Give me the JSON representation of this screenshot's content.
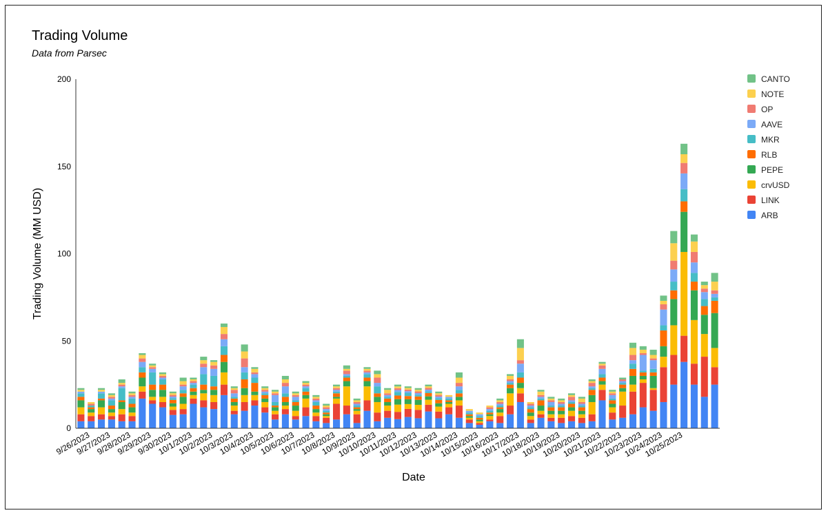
{
  "chart_data": {
    "type": "bar",
    "stacked": true,
    "title": "Trading Volume",
    "subtitle": "Data from Parsec",
    "xlabel": "Date",
    "ylabel": "Trading Volume (MM USD)",
    "ylim": [
      0,
      200
    ],
    "yticks": [
      0,
      50,
      100,
      150,
      200
    ],
    "grid": false,
    "legend_position": "right",
    "x_tick_labels": [
      "9/26/2023",
      "9/27/2023",
      "9/28/2023",
      "9/29/2023",
      "9/30/2023",
      "10/1/2023",
      "10/2/2023",
      "10/3/2023",
      "10/4/2023",
      "10/5/2023",
      "10/6/2023",
      "10/7/2023",
      "10/8/2023",
      "10/9/2023",
      "10/10/2023",
      "10/11/2023",
      "10/12/2023",
      "10/13/2023",
      "10/14/2023",
      "10/15/2023",
      "10/16/2023",
      "10/17/2023",
      "10/18/2023",
      "10/19/2023",
      "10/20/2023",
      "10/21/2023",
      "10/22/2023",
      "10/23/2023",
      "10/24/2023",
      "10/25/2023"
    ],
    "series": [
      {
        "name": "ARB",
        "color": "#4285F4"
      },
      {
        "name": "LINK",
        "color": "#EA4335"
      },
      {
        "name": "crvUSD",
        "color": "#FBBC04"
      },
      {
        "name": "PEPE",
        "color": "#34A853"
      },
      {
        "name": "RLB",
        "color": "#FF6D01"
      },
      {
        "name": "MKR",
        "color": "#46BDC6"
      },
      {
        "name": "AAVE",
        "color": "#7BAAF7"
      },
      {
        "name": "OP",
        "color": "#F07B72"
      },
      {
        "name": "NOTE",
        "color": "#FCD04F"
      },
      {
        "name": "CANTO",
        "color": "#71C287"
      }
    ],
    "bar_totals": [
      23,
      15,
      23,
      20,
      28,
      21,
      43,
      37,
      32,
      21,
      29,
      29,
      41,
      39,
      60,
      24,
      48,
      35,
      24,
      22,
      30,
      21,
      27,
      19,
      14,
      25,
      36,
      17,
      35,
      33,
      23,
      25,
      24,
      23,
      25,
      21,
      19,
      32,
      11,
      9,
      13,
      17,
      31,
      51,
      15,
      22,
      18,
      17,
      20,
      18,
      28,
      38,
      22,
      29,
      49,
      47,
      45,
      76,
      113,
      163,
      111,
      84,
      89
    ],
    "bar_segments": [
      [
        4,
        4,
        4,
        4,
        2,
        2,
        1,
        0,
        1,
        1
      ],
      [
        4,
        3,
        2,
        2,
        1,
        1,
        0,
        1,
        1,
        0
      ],
      [
        5,
        3,
        4,
        4,
        1,
        3,
        1,
        0,
        1,
        1
      ],
      [
        5,
        2,
        2,
        2,
        2,
        3,
        1,
        1,
        1,
        1
      ],
      [
        4,
        4,
        3,
        4,
        1,
        7,
        1,
        1,
        1,
        2
      ],
      [
        4,
        3,
        2,
        3,
        2,
        3,
        1,
        1,
        1,
        1
      ],
      [
        17,
        4,
        3,
        5,
        3,
        3,
        3,
        2,
        2,
        1
      ],
      [
        14,
        2,
        2,
        4,
        3,
        7,
        2,
        1,
        1,
        1
      ],
      [
        12,
        3,
        3,
        4,
        3,
        3,
        1,
        1,
        1,
        1
      ],
      [
        8,
        3,
        2,
        2,
        2,
        1,
        1,
        1,
        1,
        1
      ],
      [
        8,
        3,
        3,
        4,
        2,
        2,
        2,
        1,
        2,
        2
      ],
      [
        14,
        3,
        2,
        2,
        2,
        2,
        1,
        1,
        1,
        1
      ],
      [
        12,
        4,
        4,
        2,
        3,
        6,
        4,
        2,
        2,
        2
      ],
      [
        11,
        4,
        4,
        3,
        2,
        6,
        4,
        2,
        2,
        1
      ],
      [
        19,
        6,
        7,
        6,
        4,
        5,
        4,
        3,
        4,
        2
      ],
      [
        8,
        2,
        3,
        2,
        2,
        1,
        2,
        2,
        1,
        1
      ],
      [
        10,
        5,
        4,
        4,
        5,
        4,
        3,
        5,
        4,
        4
      ],
      [
        13,
        3,
        3,
        2,
        5,
        3,
        2,
        1,
        2,
        1
      ],
      [
        9,
        3,
        3,
        2,
        2,
        1,
        1,
        1,
        1,
        1
      ],
      [
        5,
        3,
        2,
        2,
        1,
        2,
        4,
        1,
        1,
        1
      ],
      [
        8,
        3,
        2,
        2,
        3,
        2,
        4,
        2,
        2,
        2
      ],
      [
        5,
        2,
        3,
        3,
        2,
        1,
        2,
        1,
        1,
        1
      ],
      [
        7,
        5,
        5,
        2,
        2,
        2,
        1,
        1,
        1,
        1
      ],
      [
        4,
        3,
        2,
        2,
        2,
        2,
        1,
        1,
        1,
        1
      ],
      [
        3,
        3,
        1,
        1,
        1,
        1,
        1,
        1,
        1,
        1
      ],
      [
        5,
        9,
        3,
        1,
        2,
        1,
        1,
        1,
        1,
        1
      ],
      [
        8,
        5,
        11,
        3,
        2,
        1,
        1,
        2,
        1,
        2
      ],
      [
        3,
        5,
        2,
        1,
        1,
        1,
        1,
        1,
        1,
        1
      ],
      [
        10,
        6,
        8,
        3,
        2,
        2,
        1,
        1,
        1,
        1
      ],
      [
        4,
        5,
        6,
        3,
        2,
        4,
        2,
        3,
        2,
        2
      ],
      [
        6,
        4,
        3,
        2,
        2,
        1,
        1,
        1,
        2,
        1
      ],
      [
        5,
        4,
        4,
        3,
        2,
        2,
        1,
        1,
        1,
        1
      ],
      [
        7,
        5,
        3,
        3,
        2,
        2,
        1,
        1,
        1,
        1
      ],
      [
        6,
        5,
        3,
        3,
        2,
        1,
        1,
        1,
        1,
        1
      ],
      [
        10,
        4,
        3,
        2,
        2,
        1,
        1,
        1,
        1,
        1
      ],
      [
        6,
        4,
        3,
        2,
        2,
        1,
        1,
        1,
        1,
        1
      ],
      [
        8,
        4,
        2,
        1,
        1,
        1,
        1,
        0,
        1,
        0
      ],
      [
        6,
        7,
        3,
        2,
        2,
        2,
        2,
        2,
        3,
        3
      ],
      [
        3,
        2,
        1,
        1,
        1,
        1,
        1,
        0,
        1,
        0
      ],
      [
        2,
        1,
        1,
        1,
        1,
        1,
        1,
        0,
        1,
        0
      ],
      [
        4,
        1,
        2,
        1,
        1,
        1,
        1,
        1,
        1,
        0
      ],
      [
        3,
        4,
        2,
        2,
        1,
        1,
        1,
        1,
        1,
        1
      ],
      [
        8,
        5,
        7,
        3,
        2,
        1,
        1,
        1,
        2,
        1
      ],
      [
        15,
        5,
        3,
        3,
        3,
        3,
        5,
        2,
        7,
        5
      ],
      [
        3,
        2,
        2,
        2,
        2,
        1,
        1,
        1,
        1,
        0
      ],
      [
        6,
        2,
        2,
        3,
        3,
        1,
        1,
        1,
        2,
        1
      ],
      [
        4,
        2,
        2,
        2,
        2,
        1,
        2,
        1,
        1,
        1
      ],
      [
        3,
        3,
        2,
        2,
        2,
        1,
        1,
        1,
        1,
        1
      ],
      [
        4,
        3,
        3,
        2,
        2,
        1,
        1,
        2,
        1,
        1
      ],
      [
        3,
        3,
        2,
        2,
        2,
        1,
        1,
        1,
        2,
        1
      ],
      [
        4,
        4,
        7,
        4,
        3,
        1,
        1,
        2,
        1,
        1
      ],
      [
        16,
        6,
        3,
        2,
        2,
        2,
        3,
        2,
        1,
        1
      ],
      [
        5,
        4,
        3,
        2,
        2,
        1,
        2,
        1,
        1,
        1
      ],
      [
        6,
        7,
        8,
        2,
        2,
        1,
        1,
        1,
        0,
        1
      ],
      [
        8,
        13,
        4,
        5,
        4,
        3,
        2,
        3,
        4,
        3
      ],
      [
        12,
        14,
        2,
        2,
        2,
        1,
        9,
        1,
        2,
        2
      ],
      [
        10,
        12,
        1,
        7,
        2,
        2,
        5,
        1,
        2,
        3
      ],
      [
        15,
        20,
        6,
        6,
        9,
        3,
        9,
        3,
        2,
        3
      ],
      [
        25,
        17,
        17,
        15,
        5,
        5,
        7,
        5,
        10,
        7
      ],
      [
        38,
        15,
        48,
        23,
        6,
        7,
        9,
        6,
        5,
        6
      ],
      [
        25,
        12,
        25,
        17,
        5,
        5,
        6,
        6,
        6,
        4
      ],
      [
        18,
        23,
        13,
        11,
        5,
        4,
        4,
        2,
        2,
        2
      ],
      [
        25,
        10,
        11,
        20,
        7,
        2,
        2,
        2,
        5,
        5
      ]
    ]
  }
}
